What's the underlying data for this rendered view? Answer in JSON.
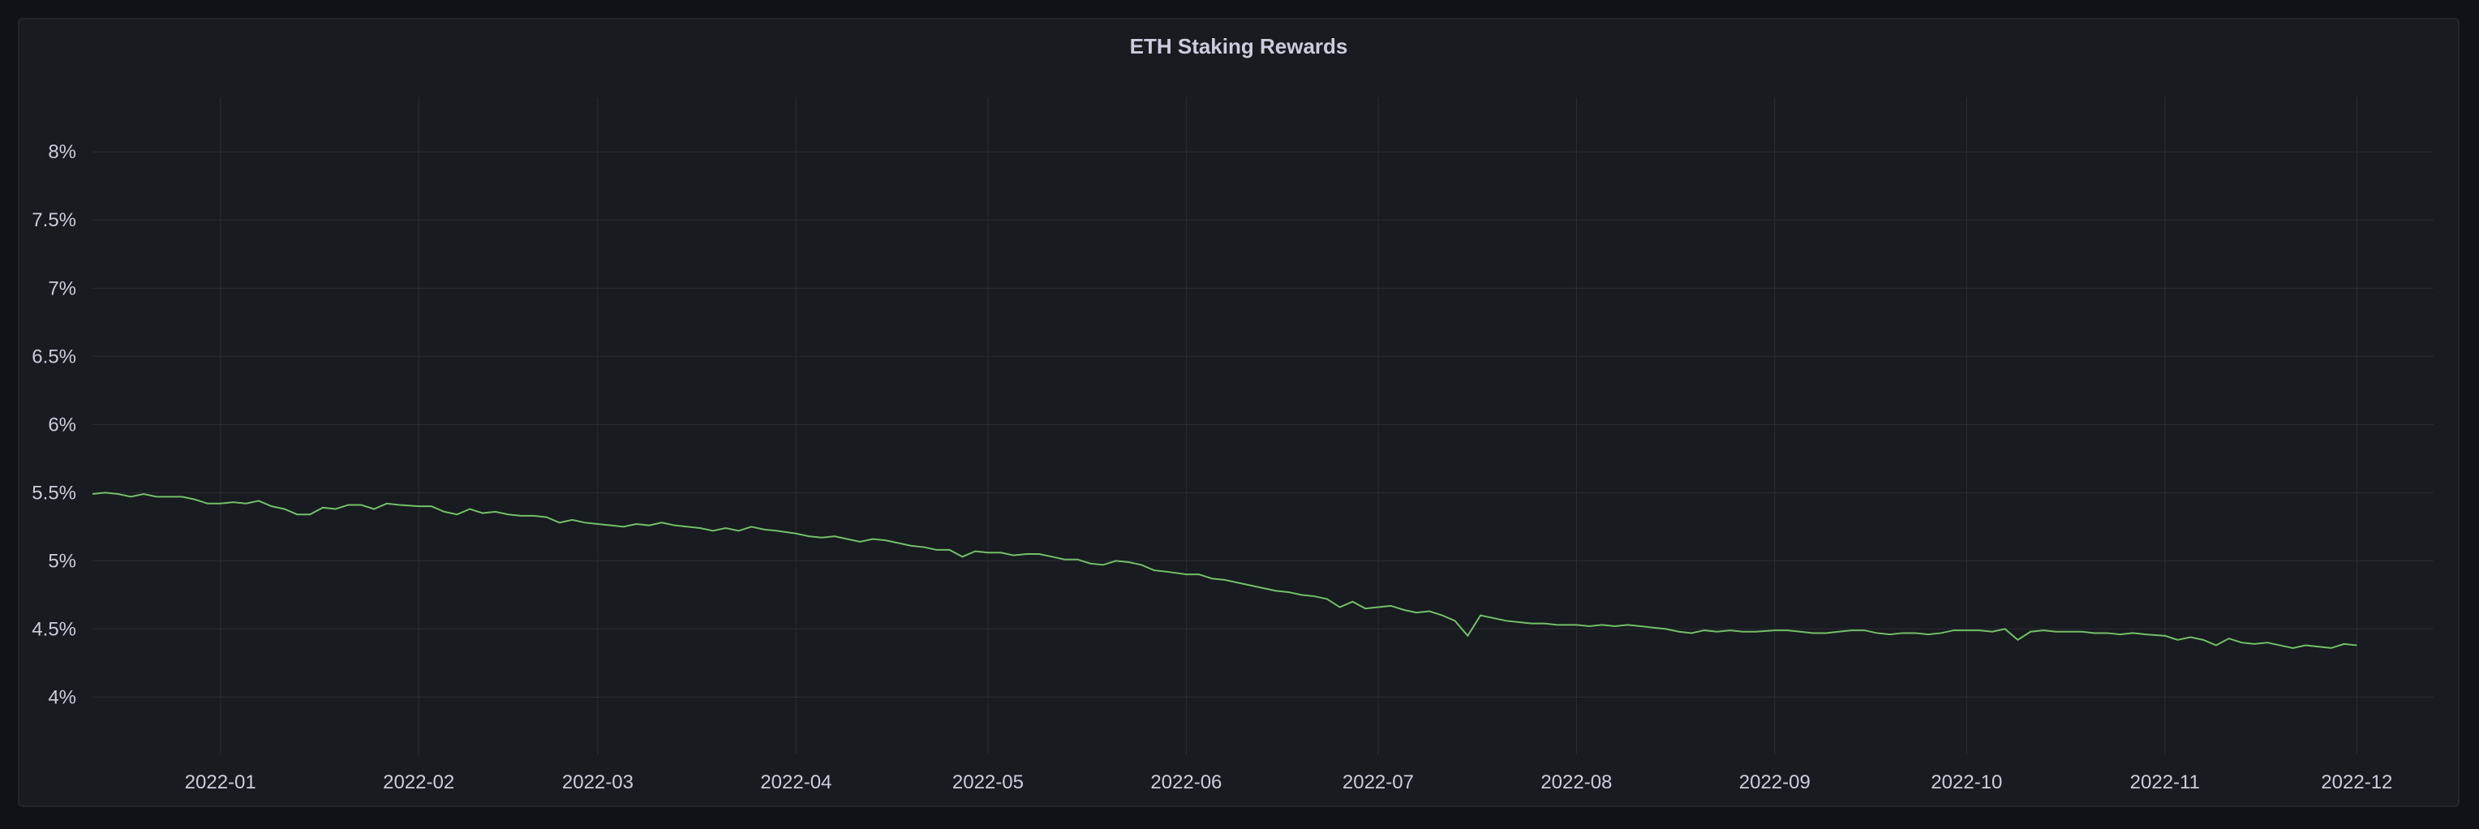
{
  "panel": {
    "title": "ETH Staking Rewards"
  },
  "colors": {
    "background": "#111217",
    "panel": "#181b1f",
    "grid": "#2a2d33",
    "series": "#73bf69",
    "text": "#ccccdc"
  },
  "chart_data": {
    "type": "line",
    "title": "ETH Staking Rewards",
    "xlabel": "",
    "ylabel": "",
    "x_type": "date",
    "xlim": [
      "2021-12-12",
      "2022-12-13"
    ],
    "ylim": [
      3.58,
      8.4
    ],
    "y_unit": "%",
    "grid": true,
    "legend": "none",
    "x_ticks": [
      "2022-01-01",
      "2022-02-01",
      "2022-03-01",
      "2022-04-01",
      "2022-05-01",
      "2022-06-01",
      "2022-07-01",
      "2022-08-01",
      "2022-09-01",
      "2022-10-01",
      "2022-11-01",
      "2022-12-01"
    ],
    "x_tick_labels": [
      "2022-01",
      "2022-02",
      "2022-03",
      "2022-04",
      "2022-05",
      "2022-06",
      "2022-07",
      "2022-08",
      "2022-09",
      "2022-10",
      "2022-11",
      "2022-12"
    ],
    "y_ticks": [
      4,
      4.5,
      5,
      5.5,
      6,
      6.5,
      7,
      7.5,
      8
    ],
    "y_tick_labels": [
      "4%",
      "4.5%",
      "5%",
      "5.5%",
      "6%",
      "6.5%",
      "7%",
      "7.5%",
      "8%"
    ],
    "series": [
      {
        "color": "#73bf69",
        "points": [
          [
            "2021-12-12",
            5.49
          ],
          [
            "2021-12-14",
            5.5
          ],
          [
            "2021-12-16",
            5.49
          ],
          [
            "2021-12-18",
            5.47
          ],
          [
            "2021-12-20",
            5.49
          ],
          [
            "2021-12-22",
            5.47
          ],
          [
            "2021-12-24",
            5.47
          ],
          [
            "2021-12-26",
            5.47
          ],
          [
            "2021-12-28",
            5.45
          ],
          [
            "2021-12-30",
            5.42
          ],
          [
            "2022-01-01",
            5.42
          ],
          [
            "2022-01-03",
            5.43
          ],
          [
            "2022-01-05",
            5.42
          ],
          [
            "2022-01-07",
            5.44
          ],
          [
            "2022-01-09",
            5.4
          ],
          [
            "2022-01-11",
            5.38
          ],
          [
            "2022-01-13",
            5.34
          ],
          [
            "2022-01-15",
            5.34
          ],
          [
            "2022-01-17",
            5.39
          ],
          [
            "2022-01-19",
            5.38
          ],
          [
            "2022-01-21",
            5.41
          ],
          [
            "2022-01-23",
            5.41
          ],
          [
            "2022-01-25",
            5.38
          ],
          [
            "2022-01-27",
            5.42
          ],
          [
            "2022-01-29",
            5.41
          ],
          [
            "2022-02-01",
            5.4
          ],
          [
            "2022-02-03",
            5.4
          ],
          [
            "2022-02-05",
            5.36
          ],
          [
            "2022-02-07",
            5.34
          ],
          [
            "2022-02-09",
            5.38
          ],
          [
            "2022-02-11",
            5.35
          ],
          [
            "2022-02-13",
            5.36
          ],
          [
            "2022-02-15",
            5.34
          ],
          [
            "2022-02-17",
            5.33
          ],
          [
            "2022-02-19",
            5.33
          ],
          [
            "2022-02-21",
            5.32
          ],
          [
            "2022-02-23",
            5.28
          ],
          [
            "2022-02-25",
            5.3
          ],
          [
            "2022-02-27",
            5.28
          ],
          [
            "2022-03-01",
            5.27
          ],
          [
            "2022-03-03",
            5.26
          ],
          [
            "2022-03-05",
            5.25
          ],
          [
            "2022-03-07",
            5.27
          ],
          [
            "2022-03-09",
            5.26
          ],
          [
            "2022-03-11",
            5.28
          ],
          [
            "2022-03-13",
            5.26
          ],
          [
            "2022-03-15",
            5.25
          ],
          [
            "2022-03-17",
            5.24
          ],
          [
            "2022-03-19",
            5.22
          ],
          [
            "2022-03-21",
            5.24
          ],
          [
            "2022-03-23",
            5.22
          ],
          [
            "2022-03-25",
            5.25
          ],
          [
            "2022-03-27",
            5.23
          ],
          [
            "2022-03-29",
            5.22
          ],
          [
            "2022-04-01",
            5.2
          ],
          [
            "2022-04-03",
            5.18
          ],
          [
            "2022-04-05",
            5.17
          ],
          [
            "2022-04-07",
            5.18
          ],
          [
            "2022-04-09",
            5.16
          ],
          [
            "2022-04-11",
            5.14
          ],
          [
            "2022-04-13",
            5.16
          ],
          [
            "2022-04-15",
            5.15
          ],
          [
            "2022-04-17",
            5.13
          ],
          [
            "2022-04-19",
            5.11
          ],
          [
            "2022-04-21",
            5.1
          ],
          [
            "2022-04-23",
            5.08
          ],
          [
            "2022-04-25",
            5.08
          ],
          [
            "2022-04-27",
            5.03
          ],
          [
            "2022-04-29",
            5.07
          ],
          [
            "2022-05-01",
            5.06
          ],
          [
            "2022-05-03",
            5.06
          ],
          [
            "2022-05-05",
            5.04
          ],
          [
            "2022-05-07",
            5.05
          ],
          [
            "2022-05-09",
            5.05
          ],
          [
            "2022-05-11",
            5.03
          ],
          [
            "2022-05-13",
            5.01
          ],
          [
            "2022-05-15",
            5.01
          ],
          [
            "2022-05-17",
            4.98
          ],
          [
            "2022-05-19",
            4.97
          ],
          [
            "2022-05-21",
            5.0
          ],
          [
            "2022-05-23",
            4.99
          ],
          [
            "2022-05-25",
            4.97
          ],
          [
            "2022-05-27",
            4.93
          ],
          [
            "2022-05-29",
            4.92
          ],
          [
            "2022-06-01",
            4.9
          ],
          [
            "2022-06-03",
            4.9
          ],
          [
            "2022-06-05",
            4.87
          ],
          [
            "2022-06-07",
            4.86
          ],
          [
            "2022-06-09",
            4.84
          ],
          [
            "2022-06-11",
            4.82
          ],
          [
            "2022-06-13",
            4.8
          ],
          [
            "2022-06-15",
            4.78
          ],
          [
            "2022-06-17",
            4.77
          ],
          [
            "2022-06-19",
            4.75
          ],
          [
            "2022-06-21",
            4.74
          ],
          [
            "2022-06-23",
            4.72
          ],
          [
            "2022-06-25",
            4.66
          ],
          [
            "2022-06-27",
            4.7
          ],
          [
            "2022-06-29",
            4.65
          ],
          [
            "2022-07-01",
            4.66
          ],
          [
            "2022-07-03",
            4.67
          ],
          [
            "2022-07-05",
            4.64
          ],
          [
            "2022-07-07",
            4.62
          ],
          [
            "2022-07-09",
            4.63
          ],
          [
            "2022-07-11",
            4.6
          ],
          [
            "2022-07-13",
            4.56
          ],
          [
            "2022-07-15",
            4.45
          ],
          [
            "2022-07-17",
            4.6
          ],
          [
            "2022-07-19",
            4.58
          ],
          [
            "2022-07-21",
            4.56
          ],
          [
            "2022-07-23",
            4.55
          ],
          [
            "2022-07-25",
            4.54
          ],
          [
            "2022-07-27",
            4.54
          ],
          [
            "2022-07-29",
            4.53
          ],
          [
            "2022-08-01",
            4.53
          ],
          [
            "2022-08-03",
            4.52
          ],
          [
            "2022-08-05",
            4.53
          ],
          [
            "2022-08-07",
            4.52
          ],
          [
            "2022-08-09",
            4.53
          ],
          [
            "2022-08-11",
            4.52
          ],
          [
            "2022-08-13",
            4.51
          ],
          [
            "2022-08-15",
            4.5
          ],
          [
            "2022-08-17",
            4.48
          ],
          [
            "2022-08-19",
            4.47
          ],
          [
            "2022-08-21",
            4.49
          ],
          [
            "2022-08-23",
            4.48
          ],
          [
            "2022-08-25",
            4.49
          ],
          [
            "2022-08-27",
            4.48
          ],
          [
            "2022-08-29",
            4.48
          ],
          [
            "2022-09-01",
            4.49
          ],
          [
            "2022-09-03",
            4.49
          ],
          [
            "2022-09-05",
            4.48
          ],
          [
            "2022-09-07",
            4.47
          ],
          [
            "2022-09-09",
            4.47
          ],
          [
            "2022-09-11",
            4.48
          ],
          [
            "2022-09-13",
            4.49
          ],
          [
            "2022-09-15",
            4.49
          ],
          [
            "2022-09-17",
            4.47
          ],
          [
            "2022-09-19",
            4.46
          ],
          [
            "2022-09-21",
            4.47
          ],
          [
            "2022-09-23",
            4.47
          ],
          [
            "2022-09-25",
            4.46
          ],
          [
            "2022-09-27",
            4.47
          ],
          [
            "2022-09-29",
            4.49
          ],
          [
            "2022-10-01",
            4.49
          ],
          [
            "2022-10-03",
            4.49
          ],
          [
            "2022-10-05",
            4.48
          ],
          [
            "2022-10-07",
            4.5
          ],
          [
            "2022-10-09",
            4.42
          ],
          [
            "2022-10-11",
            4.48
          ],
          [
            "2022-10-13",
            4.49
          ],
          [
            "2022-10-15",
            4.48
          ],
          [
            "2022-10-17",
            4.48
          ],
          [
            "2022-10-19",
            4.48
          ],
          [
            "2022-10-21",
            4.47
          ],
          [
            "2022-10-23",
            4.47
          ],
          [
            "2022-10-25",
            4.46
          ],
          [
            "2022-10-27",
            4.47
          ],
          [
            "2022-10-29",
            4.46
          ],
          [
            "2022-11-01",
            4.45
          ],
          [
            "2022-11-03",
            4.42
          ],
          [
            "2022-11-05",
            4.44
          ],
          [
            "2022-11-07",
            4.42
          ],
          [
            "2022-11-09",
            4.38
          ],
          [
            "2022-11-11",
            4.43
          ],
          [
            "2022-11-13",
            4.4
          ],
          [
            "2022-11-15",
            4.39
          ],
          [
            "2022-11-17",
            4.4
          ],
          [
            "2022-11-19",
            4.38
          ],
          [
            "2022-11-21",
            4.36
          ],
          [
            "2022-11-23",
            4.38
          ],
          [
            "2022-11-25",
            4.37
          ],
          [
            "2022-11-27",
            4.36
          ],
          [
            "2022-11-29",
            4.39
          ],
          [
            "2022-12-01",
            4.38
          ]
        ]
      }
    ]
  }
}
